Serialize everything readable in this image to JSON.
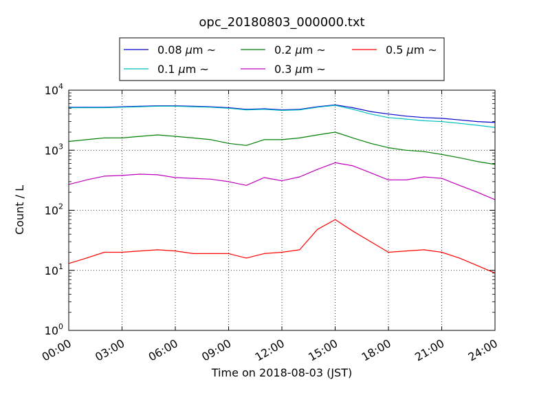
{
  "chart_data": {
    "type": "line",
    "title": "opc_20180803_000000.txt",
    "xlabel": "Time on 2018-08-03 (JST)",
    "ylabel": "Count / L",
    "yscale": "log",
    "ylim": [
      1,
      10000
    ],
    "xlim": [
      "00:00",
      "24:00"
    ],
    "x_ticks": [
      "00:00",
      "03:00",
      "06:00",
      "09:00",
      "12:00",
      "15:00",
      "18:00",
      "21:00",
      "24:00"
    ],
    "y_ticks": [
      {
        "value": 1,
        "base": "10",
        "exp": "0"
      },
      {
        "value": 10,
        "base": "10",
        "exp": "1"
      },
      {
        "value": 100,
        "base": "10",
        "exp": "2"
      },
      {
        "value": 1000,
        "base": "10",
        "exp": "3"
      },
      {
        "value": 10000,
        "base": "10",
        "exp": "4"
      }
    ],
    "grid": true,
    "legend_position": "top-center",
    "x": [
      "00:00",
      "01:00",
      "02:00",
      "03:00",
      "04:00",
      "05:00",
      "06:00",
      "07:00",
      "08:00",
      "09:00",
      "10:00",
      "11:00",
      "12:00",
      "13:00",
      "14:00",
      "15:00",
      "16:00",
      "17:00",
      "18:00",
      "19:00",
      "20:00",
      "21:00",
      "22:00",
      "23:00",
      "24:00"
    ],
    "series": [
      {
        "name": "0.08 μm ~",
        "label_main": "0.08 ",
        "label_mu": "μ",
        "label_unit": "m ~",
        "color": "#0000cc",
        "values": [
          5200,
          5200,
          5200,
          5300,
          5400,
          5500,
          5500,
          5400,
          5300,
          5100,
          4800,
          4900,
          4700,
          4800,
          5300,
          5700,
          5100,
          4400,
          4000,
          3700,
          3500,
          3400,
          3200,
          3000,
          2900
        ]
      },
      {
        "name": "0.1 μm ~",
        "label_main": "0.1 ",
        "label_mu": "μ",
        "label_unit": "m ~",
        "color": "#00bfbf",
        "values": [
          5100,
          5100,
          5100,
          5200,
          5300,
          5400,
          5400,
          5300,
          5200,
          5000,
          4700,
          4800,
          4600,
          4700,
          5200,
          5600,
          4800,
          4000,
          3500,
          3300,
          3100,
          3000,
          2800,
          2600,
          2400
        ]
      },
      {
        "name": "0.2 μm ~",
        "label_main": "0.2 ",
        "label_mu": "μ",
        "label_unit": "m ~",
        "color": "#008000",
        "values": [
          1400,
          1500,
          1600,
          1600,
          1700,
          1800,
          1700,
          1600,
          1500,
          1300,
          1200,
          1500,
          1500,
          1600,
          1800,
          2000,
          1600,
          1300,
          1100,
          1000,
          950,
          850,
          750,
          650,
          580
        ]
      },
      {
        "name": "0.3 μm ~",
        "label_main": "0.3 ",
        "label_mu": "μ",
        "label_unit": "m ~",
        "color": "#bf00bf",
        "values": [
          270,
          320,
          370,
          380,
          400,
          390,
          350,
          340,
          330,
          300,
          260,
          350,
          310,
          360,
          480,
          620,
          550,
          420,
          320,
          320,
          360,
          340,
          260,
          200,
          150
        ]
      },
      {
        "name": "0.5 μm ~",
        "label_main": "0.5 ",
        "label_mu": "μ",
        "label_unit": "m ~",
        "color": "#ff0000",
        "values": [
          13,
          16,
          20,
          20,
          21,
          22,
          21,
          19,
          19,
          19,
          16,
          19,
          20,
          22,
          48,
          70,
          45,
          30,
          20,
          21,
          22,
          20,
          16,
          12,
          9
        ]
      }
    ]
  }
}
